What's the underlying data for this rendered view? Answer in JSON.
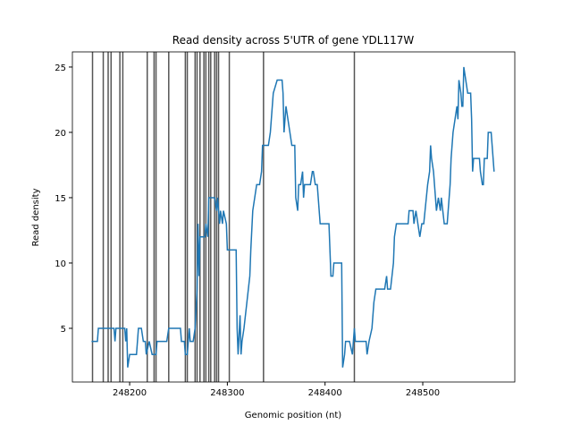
{
  "chart_data": {
    "type": "line",
    "title": "Read density across 5'UTR of gene YDL117W",
    "xlabel": "Genomic position (nt)",
    "ylabel": "Read density",
    "xlim": [
      248141.4,
      248594.2
    ],
    "ylim": [
      0.89,
      26.16
    ],
    "xticks": [
      248200,
      248300,
      248400,
      248500
    ],
    "yticks": [
      5,
      10,
      15,
      20,
      25
    ],
    "vlines": {
      "color": "#555555",
      "values": [
        248162,
        248173,
        248178,
        248181,
        248190,
        248193,
        248218,
        248225,
        248227,
        248240,
        248257,
        248259,
        248267,
        248269,
        248272,
        248276,
        248278,
        248281,
        248283,
        248287,
        248289,
        248291,
        248302,
        248337,
        248430
      ]
    },
    "series": [
      {
        "color": "#1f77b4",
        "x": [
          248161,
          248167,
          248168,
          248184,
          248185,
          248186,
          248195,
          248196,
          248197,
          248198,
          248200,
          248207,
          248209,
          248212,
          248214,
          248216,
          248217,
          248220,
          248223,
          248227,
          248228,
          248238,
          248240,
          248252,
          248253,
          248256,
          248257,
          248259,
          248261,
          248262,
          248265,
          248267,
          248269,
          248270,
          248271,
          248272,
          248277,
          248278,
          248280,
          248281,
          248287,
          248289,
          248290,
          248292,
          248293,
          248295,
          248296,
          248299,
          248300,
          248302,
          248303,
          248309,
          248310,
          248311,
          248313,
          248314,
          248315,
          248317,
          248320,
          248323,
          248324,
          248326,
          248328,
          248330,
          248333,
          248335,
          248336,
          248342,
          248344,
          248345,
          248347,
          248351,
          248356,
          248357,
          248358,
          248360,
          248362,
          248364,
          248366,
          248369,
          248370,
          248372,
          248373,
          248375,
          248377,
          248378,
          248379,
          248385,
          248387,
          248388,
          248390,
          248392,
          248394,
          248395,
          248404,
          248405,
          248406,
          248408,
          248409,
          248417,
          248418,
          248420,
          248421,
          248425,
          248428,
          248429,
          248430,
          248431,
          248442,
          248443,
          248445,
          248448,
          248450,
          248452,
          248461,
          248463,
          248464,
          248467,
          248470,
          248471,
          248473,
          248485,
          248486,
          248490,
          248491,
          248493,
          248495,
          248497,
          248499,
          248501,
          248505,
          248507,
          248508,
          248509,
          248511,
          248514,
          248516,
          248518,
          248519,
          248522,
          248525,
          248527,
          248528,
          248529,
          248531,
          248533,
          248535,
          248536,
          248537,
          248539,
          248540,
          248541,
          248542,
          248544,
          248546,
          248549,
          248550,
          248551,
          248552,
          248558,
          248559,
          248561,
          248562,
          248563,
          248566,
          248567,
          248570,
          248571,
          248573
        ],
        "values": [
          4,
          4,
          5,
          5,
          4,
          5,
          5,
          4,
          5,
          2,
          3,
          3,
          5,
          5,
          4,
          4,
          3,
          4,
          3,
          3,
          4,
          4,
          5,
          5,
          4,
          4,
          3,
          3,
          5,
          4,
          4,
          5,
          8,
          13,
          9,
          12,
          12,
          13,
          12,
          15,
          15,
          14,
          15,
          13,
          14,
          13,
          14,
          13,
          11,
          11,
          11,
          11,
          5,
          3,
          6,
          3,
          4,
          5,
          7,
          9,
          11,
          14,
          15,
          16,
          16,
          17,
          19,
          19,
          20,
          21,
          23,
          24,
          24,
          23,
          20,
          22,
          21,
          20,
          19,
          19,
          15,
          14,
          16,
          16,
          17,
          15,
          16,
          16,
          17,
          17,
          16,
          16,
          14,
          13,
          13,
          11,
          9,
          9,
          10,
          10,
          2,
          3,
          4,
          4,
          3,
          4,
          5,
          4,
          4,
          3,
          4,
          5,
          7,
          8,
          8,
          9,
          8,
          8,
          10,
          12,
          13,
          13,
          14,
          14,
          13,
          14,
          13,
          12,
          13,
          13,
          16,
          17,
          19,
          18,
          17,
          14,
          15,
          14,
          15,
          13,
          13,
          15,
          16,
          18,
          20,
          21,
          22,
          21,
          24,
          23,
          22,
          22,
          25,
          24,
          23,
          23,
          21,
          17,
          18,
          18,
          17,
          16,
          16,
          18,
          18,
          20,
          20,
          19,
          17
        ]
      }
    ]
  }
}
